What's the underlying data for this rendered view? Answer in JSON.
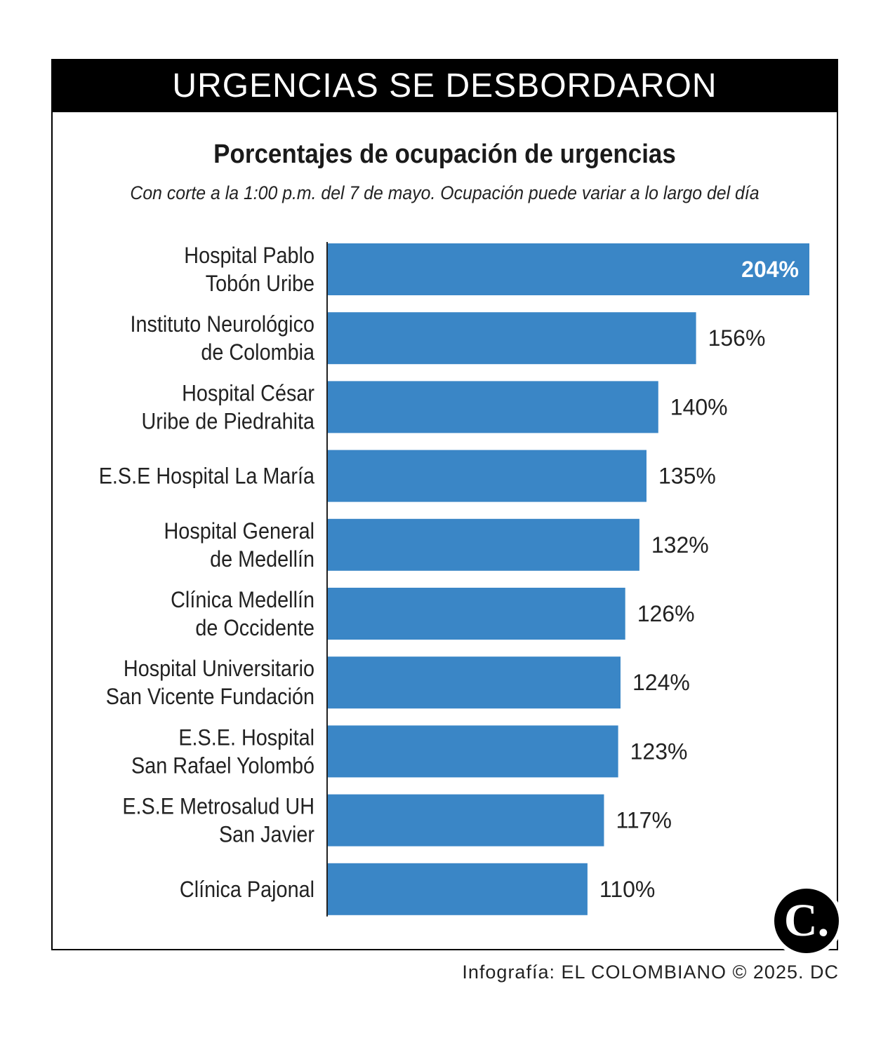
{
  "banner": "URGENCIAS SE DESBORDARON",
  "credit": "Infografía: EL COLOMBIANO © 2025. DC",
  "logo_text": "C.",
  "colors": {
    "bar": "#3a86c6",
    "banner": "#000000"
  },
  "chart_data": {
    "type": "bar",
    "orientation": "horizontal",
    "title": "Porcentajes de ocupación de urgencias",
    "subtitle": "Con corte a la 1:00 p.m. del 7 de mayo. Ocupación puede variar a lo largo del día",
    "categories": [
      [
        "Hospital Pablo",
        "Tobón Uribe"
      ],
      [
        "Instituto Neurológico",
        "de Colombia"
      ],
      [
        "Hospital César",
        "Uribe de Piedrahita"
      ],
      [
        "E.S.E Hospital La María"
      ],
      [
        "Hospital General",
        "de Medellín"
      ],
      [
        "Clínica Medellín",
        "de Occidente"
      ],
      [
        "Hospital Universitario",
        "San Vicente Fundación"
      ],
      [
        "E.S.E. Hospital",
        "San Rafael Yolombó"
      ],
      [
        "E.S.E Metrosalud UH",
        "San Javier"
      ],
      [
        "Clínica Pajonal"
      ]
    ],
    "values": [
      204,
      156,
      140,
      135,
      132,
      126,
      124,
      123,
      117,
      110
    ],
    "value_labels": [
      "204%",
      "156%",
      "140%",
      "135%",
      "132%",
      "126%",
      "124%",
      "123%",
      "117%",
      "110%"
    ],
    "unit": "%",
    "xlim": [
      0,
      204
    ],
    "grid": false,
    "legend": "none"
  }
}
